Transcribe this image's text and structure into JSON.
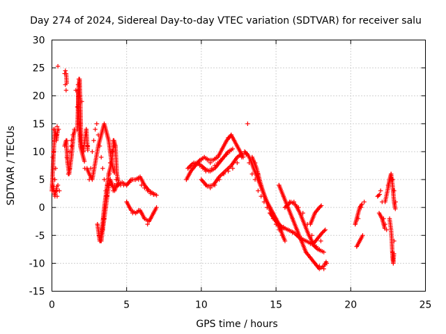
{
  "chart_data": {
    "type": "scatter",
    "title": "Day 274 of 2024, Sidereal Day-to-day VTEC variation (SDTVAR) for receiver salu",
    "xlabel": "GPS time / hours",
    "ylabel": "SDTVAR / TECUs",
    "xlim": [
      0,
      25
    ],
    "ylim": [
      -15,
      30
    ],
    "xticks": [
      "0",
      "5",
      "10",
      "15",
      "20",
      "25"
    ],
    "yticks": [
      "-15",
      "-10",
      "-5",
      "0",
      "5",
      "10",
      "15",
      "20",
      "25",
      "30"
    ],
    "grid": true,
    "marker": "+",
    "color": "#ff0000",
    "series": [
      {
        "name": "SDTVAR",
        "x": [
          0.0,
          0.05,
          0.1,
          0.15,
          0.2,
          0.25,
          0.3,
          0.35,
          0.4,
          0.45,
          0.1,
          0.2,
          0.3,
          0.4,
          0.5,
          0.35,
          0.85,
          0.9,
          0.95,
          1.0,
          1.05,
          1.1,
          1.2,
          1.3,
          1.4,
          1.5,
          0.9,
          1.0,
          1.1,
          1.2,
          1.3,
          1.6,
          1.7,
          1.75,
          1.8,
          1.85,
          1.9,
          1.95,
          2.0,
          2.1,
          2.2,
          2.3,
          2.4,
          2.0,
          2.1,
          2.2,
          1.8,
          1.9,
          2.35,
          2.5,
          2.6,
          2.7,
          2.8,
          2.9,
          3.0,
          3.1,
          3.2,
          3.3,
          3.4,
          3.5,
          3.6,
          3.7,
          3.8,
          3.9,
          4.0,
          4.1,
          4.2,
          3.05,
          3.15,
          3.25,
          3.35,
          3.45,
          3.55,
          3.65,
          3.75,
          3.85,
          3.95,
          4.05,
          4.15,
          4.25,
          4.35,
          4.45,
          3.3,
          3.4,
          3.5,
          3.6,
          3.7,
          3.8,
          3.9,
          4.0,
          4.1,
          4.2,
          4.3,
          4.4,
          4.6,
          4.8,
          5.0,
          5.2,
          5.4,
          5.6,
          5.8,
          6.0,
          6.2,
          6.4,
          6.6,
          6.8,
          7.0,
          5.0,
          5.2,
          5.4,
          5.6,
          5.8,
          6.0,
          6.2,
          6.4,
          6.6,
          6.8,
          7.0,
          9.0,
          9.2,
          9.4,
          9.6,
          9.8,
          10.0,
          10.2,
          10.4,
          10.6,
          10.8,
          11.0,
          11.2,
          11.4,
          11.6,
          11.8,
          12.0,
          12.2,
          12.4,
          12.6,
          12.8,
          9.1,
          9.3,
          9.5,
          9.7,
          9.9,
          10.1,
          10.3,
          10.5,
          10.7,
          10.9,
          11.1,
          11.3,
          11.5,
          11.7,
          11.9,
          12.1,
          10.0,
          10.3,
          10.6,
          10.9,
          11.2,
          11.5,
          11.8,
          12.1,
          12.4,
          12.7,
          13.0,
          13.1,
          12.9,
          13.0,
          13.2,
          13.4,
          13.6,
          13.8,
          14.0,
          14.2,
          14.4,
          14.6,
          14.8,
          15.0,
          15.2,
          15.4,
          15.6,
          13.4,
          13.6,
          13.8,
          14.0,
          14.2,
          14.4,
          14.6,
          14.8,
          15.0,
          15.2,
          15.4,
          15.2,
          15.5,
          15.8,
          16.1,
          16.4,
          16.7,
          17.0,
          17.3,
          17.6,
          17.9,
          18.2,
          18.4,
          14.6,
          14.9,
          15.2,
          15.5,
          15.8,
          16.1,
          16.4,
          16.7,
          17.0,
          17.3,
          17.6,
          17.9,
          18.2,
          15.6,
          15.9,
          16.2,
          16.5,
          16.8,
          17.1,
          17.4,
          17.7,
          18.0,
          18.3,
          20.3,
          20.5,
          20.7,
          20.9,
          20.4,
          20.6,
          20.8,
          21.8,
          22.0,
          22.1,
          22.2,
          22.3,
          22.4,
          22.5,
          22.6,
          22.7,
          22.8,
          22.9,
          23.0,
          22.9,
          22.85,
          22.8
        ]
      }
    ]
  }
}
